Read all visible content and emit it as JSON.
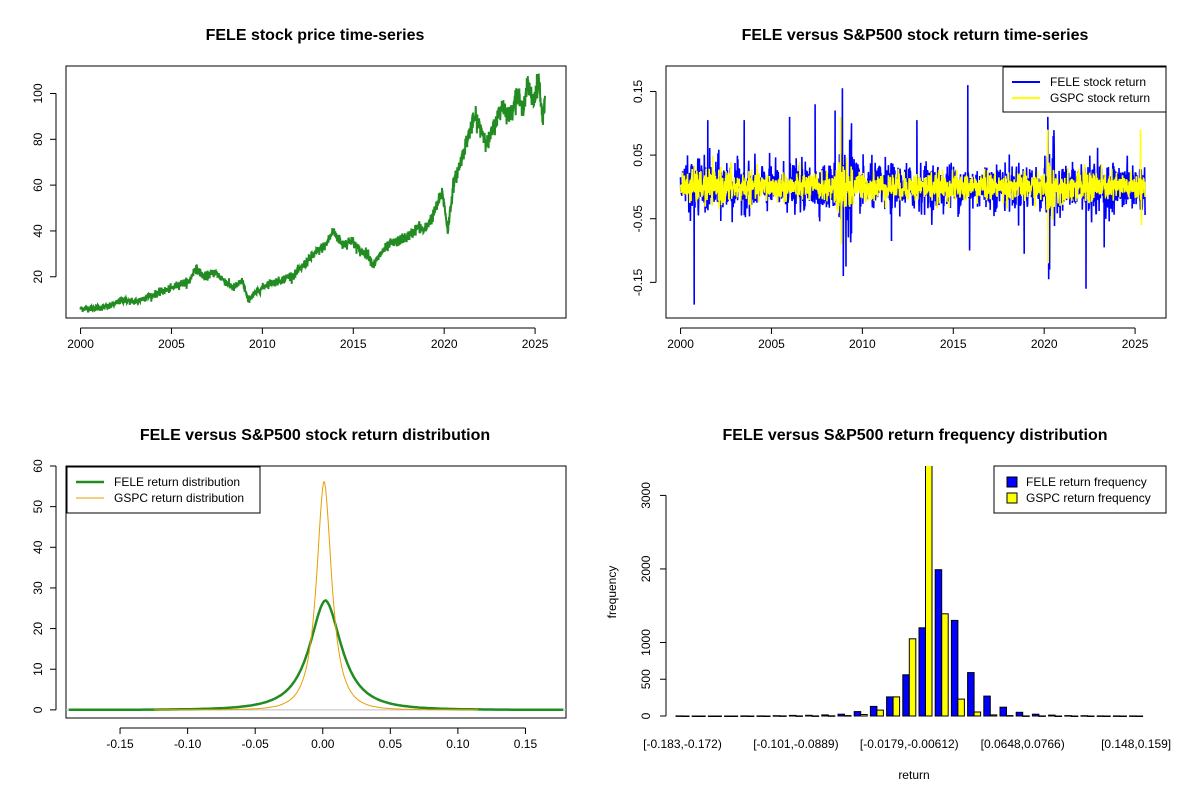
{
  "chart_data": [
    {
      "type": "line",
      "title": "FELE stock price time-series",
      "xlabel": "",
      "ylabel": "",
      "xlim": [
        1999.2,
        2026.7
      ],
      "ylim": [
        2,
        112
      ],
      "xticks": [
        2000,
        2005,
        2010,
        2015,
        2020,
        2025
      ],
      "xtick_labels": [
        "2000",
        "2005",
        "2010",
        "2015",
        "2020",
        "2025"
      ],
      "yticks": [
        20,
        40,
        60,
        80,
        100
      ],
      "ytick_labels": [
        "20",
        "40",
        "60",
        "80",
        "100"
      ],
      "colors": {
        "line": "#228b22"
      },
      "series": [
        {
          "x": [
            2000.0,
            2001.0,
            2001.6,
            2002.3,
            2003.0,
            2003.6,
            2004.3,
            2005.0,
            2005.5,
            2006.0,
            2006.3,
            2006.8,
            2007.4,
            2007.8,
            2008.4,
            2008.9,
            2009.2,
            2009.8,
            2010.3,
            2010.9,
            2011.4,
            2011.8,
            2012.5,
            2013.0,
            2013.5,
            2013.9,
            2014.4,
            2014.9,
            2015.4,
            2015.8,
            2016.1,
            2016.6,
            2017.0,
            2017.6,
            2018.1,
            2018.6,
            2018.9,
            2019.4,
            2019.9,
            2020.2,
            2020.5,
            2020.9,
            2021.3,
            2021.7,
            2022.0,
            2022.4,
            2022.8,
            2023.2,
            2023.6,
            2024.0,
            2024.3,
            2024.6,
            2024.9,
            2025.2,
            2025.4,
            2025.55
          ],
          "y": [
            6,
            6.5,
            7,
            10,
            9,
            11,
            13,
            15,
            17,
            18,
            24,
            20,
            22,
            19,
            15,
            18,
            10,
            14,
            17,
            18,
            20,
            21,
            27,
            31,
            34,
            40,
            34,
            36,
            31,
            30,
            25,
            31,
            34,
            36,
            38,
            42,
            40,
            47,
            57,
            40,
            60,
            70,
            81,
            90,
            85,
            78,
            87,
            95,
            90,
            100,
            93,
            104,
            96,
            107,
            88,
            99
          ]
        }
      ]
    },
    {
      "type": "line",
      "title": "FELE versus S&P500 stock return time-series",
      "xlabel": "",
      "ylabel": "",
      "xlim": [
        1999.2,
        2026.7
      ],
      "ylim": [
        -0.206,
        0.19
      ],
      "xticks": [
        2000,
        2005,
        2010,
        2015,
        2020,
        2025
      ],
      "xtick_labels": [
        "2000",
        "2005",
        "2010",
        "2015",
        "2020",
        "2025"
      ],
      "yticks": [
        0.15,
        0.05,
        -0.05,
        -0.15
      ],
      "ytick_labels": [
        "0.15",
        "0.05",
        "-0.05",
        "-0.15"
      ],
      "legend": {
        "position": "top-right",
        "entries": [
          "FELE stock return",
          "GSPC stock return"
        ]
      },
      "colors": {
        "fele": "#0000ff",
        "gspc": "#ffff00"
      },
      "series": [
        {
          "name": "FELE stock return",
          "approx_std": 0.018,
          "x_range": [
            2000.0,
            2025.55
          ],
          "spikes": [
            [
              2000.75,
              -0.185
            ],
            [
              2001.5,
              0.105
            ],
            [
              2003.5,
              0.105
            ],
            [
              2006.0,
              0.11
            ],
            [
              2007.4,
              0.13
            ],
            [
              2008.5,
              0.12
            ],
            [
              2008.9,
              0.155
            ],
            [
              2008.95,
              -0.14
            ],
            [
              2009.1,
              -0.125
            ],
            [
              2009.4,
              0.1
            ],
            [
              2011.6,
              -0.085
            ],
            [
              2013.0,
              0.105
            ],
            [
              2015.8,
              0.16
            ],
            [
              2015.9,
              -0.1
            ],
            [
              2018.9,
              -0.105
            ],
            [
              2020.2,
              0.11
            ],
            [
              2020.25,
              -0.145
            ],
            [
              2020.3,
              -0.13
            ],
            [
              2022.3,
              -0.16
            ],
            [
              2023.3,
              -0.095
            ]
          ]
        },
        {
          "name": "GSPC stock return",
          "approx_std": 0.011,
          "x_range": [
            2000.0,
            2025.55
          ],
          "spikes": [
            [
              2008.8,
              0.11
            ],
            [
              2008.85,
              -0.09
            ],
            [
              2020.2,
              0.09
            ],
            [
              2020.22,
              -0.12
            ],
            [
              2025.3,
              0.09
            ],
            [
              2025.35,
              -0.06
            ]
          ]
        }
      ]
    },
    {
      "type": "line",
      "title": "FELE versus S&P500 stock return distribution",
      "xlabel": "",
      "ylabel": "",
      "xlim": [
        -0.19,
        0.18
      ],
      "ylim": [
        -2,
        60
      ],
      "xticks": [
        -0.15,
        -0.1,
        -0.05,
        0.0,
        0.05,
        0.1,
        0.15
      ],
      "xtick_labels": [
        "-0.15",
        "-0.10",
        "-0.05",
        "0.00",
        "0.05",
        "0.10",
        "0.15"
      ],
      "yticks": [
        0,
        10,
        20,
        30,
        40,
        50,
        60
      ],
      "ytick_labels": [
        "0",
        "10",
        "20",
        "30",
        "40",
        "50",
        "60"
      ],
      "legend": {
        "position": "top-left",
        "entries": [
          "FELE return distribution",
          "GSPC return distribution"
        ]
      },
      "colors": {
        "fele": "#228b22",
        "gspc": "#e69f00",
        "baseline": "#bebebe"
      },
      "series": [
        {
          "name": "FELE return distribution",
          "peak": 27,
          "mode": 0.002,
          "scale": 0.0145,
          "range": [
            -0.188,
            0.178
          ]
        },
        {
          "name": "GSPC return distribution",
          "peak": 56.5,
          "mode": 0.001,
          "scale": 0.0068,
          "range": [
            -0.125,
            0.115
          ]
        }
      ]
    },
    {
      "type": "bar",
      "title": "FELE versus S&P500 return frequency distribution",
      "xlabel": "return",
      "ylabel": "frequency",
      "ylim": [
        0,
        3400
      ],
      "yticks": [
        0,
        500,
        1000,
        2000,
        3000
      ],
      "ytick_labels": [
        "0",
        "500",
        "1000",
        "2000",
        "3000"
      ],
      "category_labels_shown": [
        "[-0.183,-0.172)",
        "[-0.101,-0.0889)",
        "[-0.0179,-0.00612)",
        "[0.0648,0.0766)",
        "[0.148,0.159]"
      ],
      "category_label_indices": [
        0,
        7,
        14,
        21,
        28
      ],
      "legend": {
        "position": "top-right",
        "entries": [
          "FELE return frequency",
          "GSPC return frequency"
        ]
      },
      "colors": {
        "fele": "#0000ff",
        "gspc": "#ffff00",
        "border": "#000000"
      },
      "series": [
        {
          "name": "FELE return frequency",
          "values": [
            1,
            0,
            0,
            0,
            1,
            2,
            4,
            8,
            10,
            15,
            25,
            60,
            130,
            260,
            560,
            1200,
            1990,
            1300,
            590,
            270,
            120,
            50,
            25,
            12,
            6,
            4,
            2,
            1,
            1
          ]
        },
        {
          "name": "GSPC return frequency",
          "values": [
            0,
            0,
            0,
            0,
            0,
            0,
            1,
            1,
            2,
            3,
            6,
            20,
            80,
            260,
            1050,
            3450,
            1390,
            230,
            55,
            15,
            6,
            2,
            1,
            0,
            0,
            0,
            0,
            0,
            0
          ]
        }
      ]
    }
  ]
}
